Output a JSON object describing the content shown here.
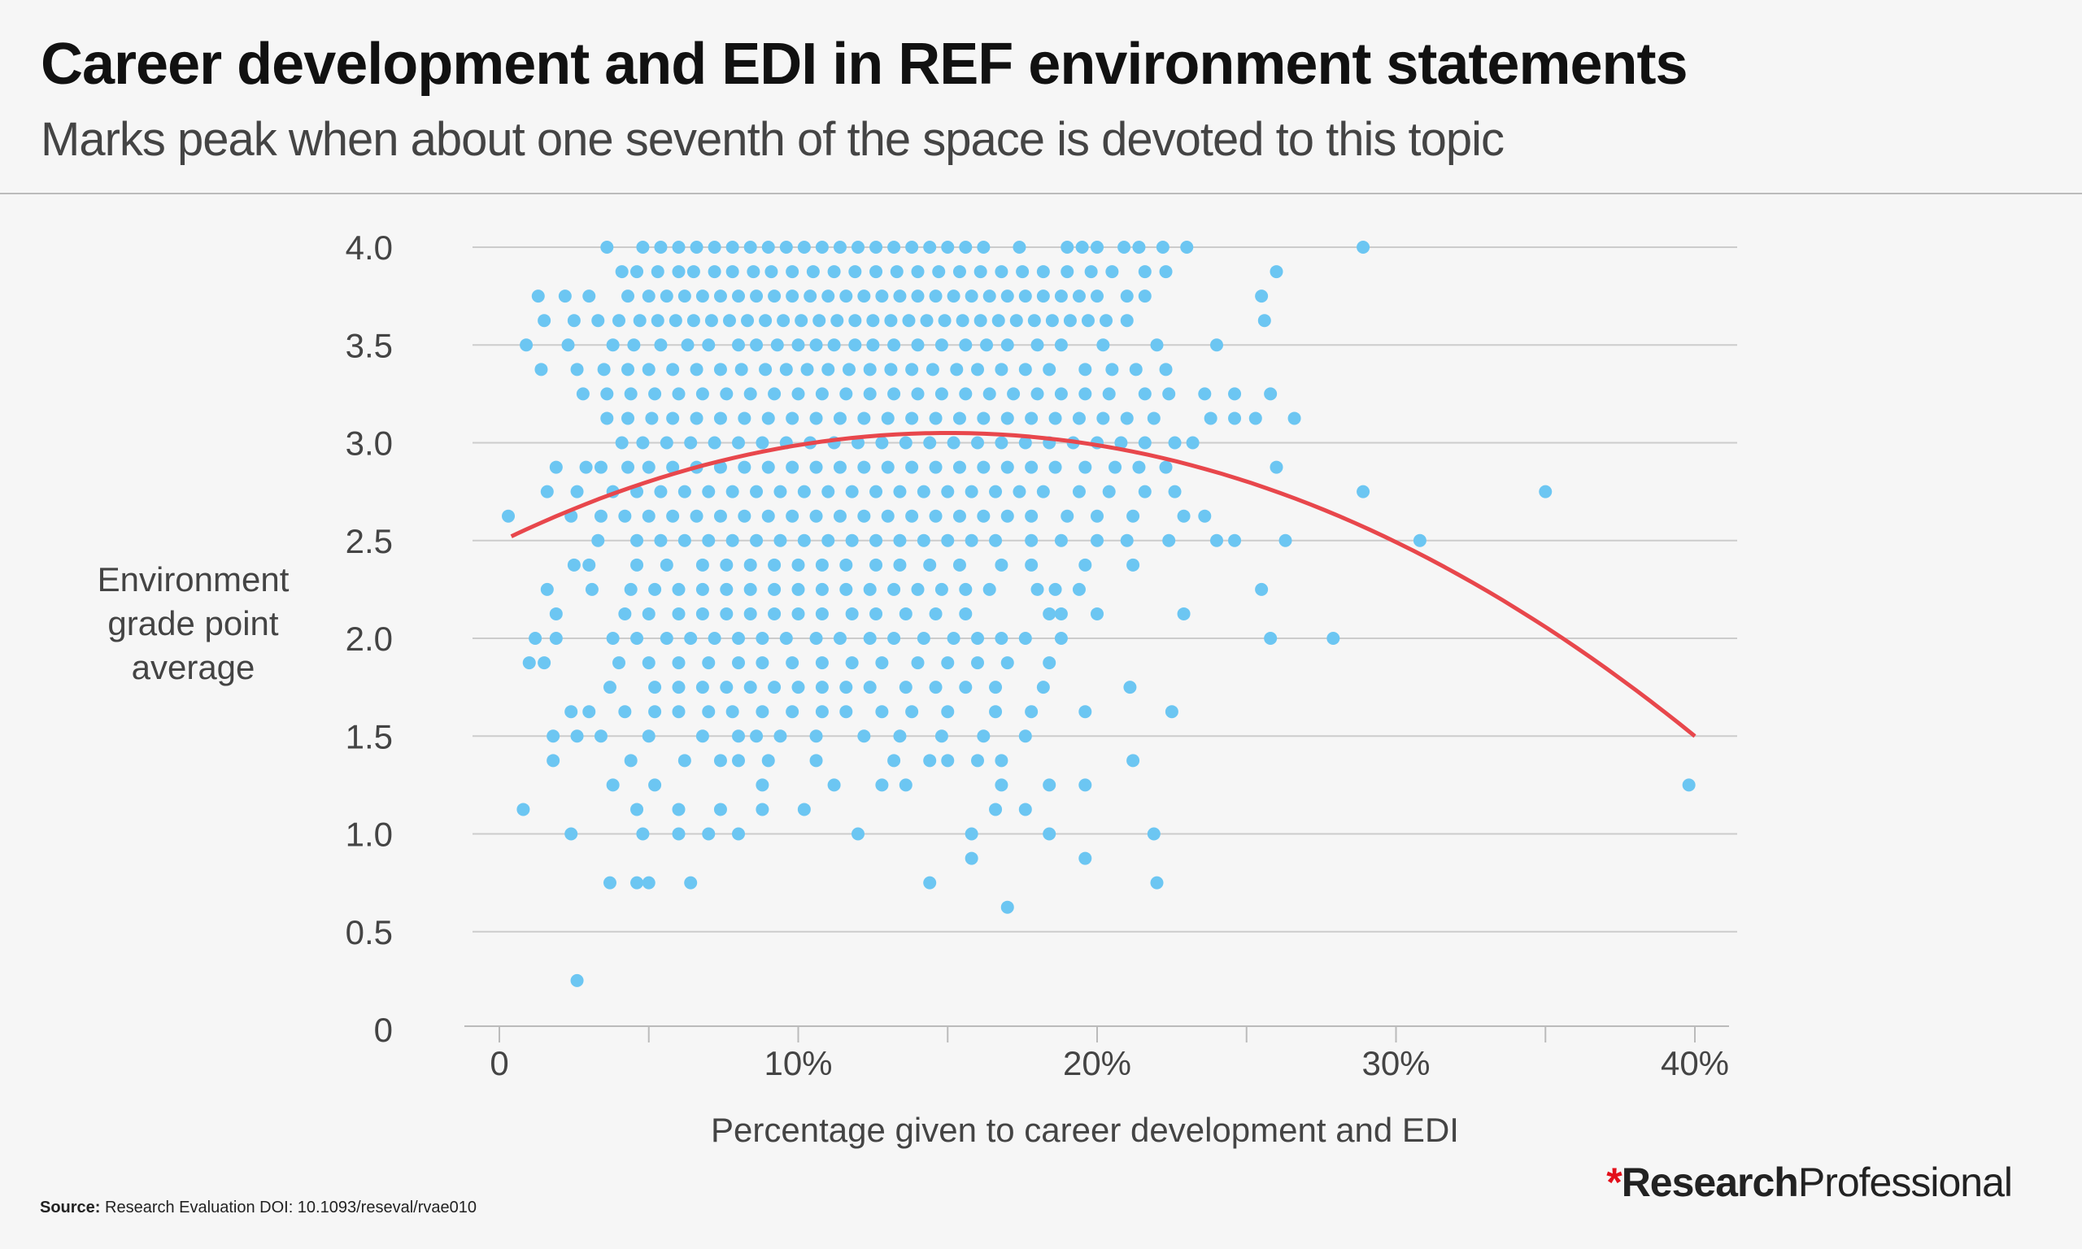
{
  "title": "Career development and EDI in REF environment statements",
  "subtitle": "Marks peak when about one seventh of the space is devoted to this topic",
  "source_label": "Source:",
  "source_text": "Research Evaluation DOI: 10.1093/reseval/rvae010",
  "logo": {
    "mark": "*",
    "bold": "Research",
    "regular": "Professional"
  },
  "colors": {
    "points": "#6cc6f2",
    "trend": "#e8474c",
    "grid": "#cccccc"
  },
  "chart_data": {
    "type": "scatter",
    "title": "Career development and EDI in REF environment statements",
    "subtitle": "Marks peak when about one seventh of the space is devoted to this topic",
    "xlabel": "Percentage given to career development and EDI",
    "ylabel_lines": [
      "Environment",
      "grade point",
      "average"
    ],
    "xlim": [
      0,
      40
    ],
    "ylim": [
      0,
      4
    ],
    "x_ticks": [
      {
        "v": 0,
        "label": "0"
      },
      {
        "v": 10,
        "label": "10%"
      },
      {
        "v": 20,
        "label": "20%"
      },
      {
        "v": 30,
        "label": "30%"
      },
      {
        "v": 40,
        "label": "40%"
      }
    ],
    "x_minor_ticks": [
      5,
      15,
      25,
      35
    ],
    "y_ticks": [
      {
        "v": 0,
        "label": "0"
      },
      {
        "v": 0.5,
        "label": "0.5"
      },
      {
        "v": 1,
        "label": "1.0"
      },
      {
        "v": 1.5,
        "label": "1.5"
      },
      {
        "v": 2,
        "label": "2.0"
      },
      {
        "v": 2.5,
        "label": "2.5"
      },
      {
        "v": 3,
        "label": "3.0"
      },
      {
        "v": 3.5,
        "label": "3.5"
      },
      {
        "v": 4,
        "label": "4.0"
      }
    ],
    "grid": "horizontal",
    "trend": {
      "type": "quadratic",
      "peak_x": 15,
      "peak_y": 3.05,
      "x_range": [
        0.4,
        40
      ],
      "y_at_end": 1.5
    },
    "rows": [
      {
        "y": 4.0,
        "x": [
          3.6,
          4.8,
          5.4,
          6.0,
          6.6,
          7.2,
          7.8,
          8.4,
          9.0,
          9.6,
          10.2,
          10.8,
          11.4,
          12.0,
          12.6,
          13.2,
          13.8,
          14.4,
          15.0,
          15.6,
          16.2,
          17.4,
          19.0,
          19.5,
          20.0,
          20.9,
          21.4,
          22.2,
          23.0,
          28.9
        ]
      },
      {
        "y": 3.875,
        "x": [
          4.1,
          4.6,
          5.3,
          6.0,
          6.5,
          7.2,
          7.8,
          8.5,
          9.1,
          9.8,
          10.5,
          11.2,
          11.9,
          12.6,
          13.3,
          14.0,
          14.7,
          15.4,
          16.1,
          16.8,
          17.5,
          18.2,
          19.0,
          19.8,
          20.5,
          21.6,
          22.3,
          26.0
        ]
      },
      {
        "y": 3.75,
        "x": [
          1.3,
          2.2,
          3.0,
          4.3,
          5.0,
          5.6,
          6.2,
          6.8,
          7.4,
          8.0,
          8.6,
          9.2,
          9.8,
          10.4,
          11.0,
          11.6,
          12.2,
          12.8,
          13.4,
          14.0,
          14.6,
          15.2,
          15.8,
          16.4,
          17.0,
          17.6,
          18.2,
          18.8,
          19.4,
          20.0,
          21.0,
          21.6,
          25.5
        ]
      },
      {
        "y": 3.625,
        "x": [
          1.5,
          2.5,
          3.3,
          4.0,
          4.7,
          5.3,
          5.9,
          6.5,
          7.1,
          7.7,
          8.3,
          8.9,
          9.5,
          10.1,
          10.7,
          11.3,
          11.9,
          12.5,
          13.1,
          13.7,
          14.3,
          14.9,
          15.5,
          16.1,
          16.7,
          17.3,
          17.9,
          18.5,
          19.1,
          19.7,
          20.3,
          21.0,
          25.6
        ]
      },
      {
        "y": 3.5,
        "x": [
          0.9,
          2.3,
          3.8,
          4.5,
          5.4,
          6.3,
          7.0,
          8.0,
          8.6,
          9.3,
          10.0,
          10.6,
          11.2,
          11.9,
          12.5,
          13.2,
          14.0,
          14.8,
          15.6,
          16.3,
          17.0,
          18.0,
          18.8,
          20.2,
          22.0,
          24.0
        ]
      },
      {
        "y": 3.375,
        "x": [
          1.4,
          2.6,
          3.5,
          4.3,
          5.0,
          5.8,
          6.6,
          7.4,
          8.1,
          8.9,
          9.6,
          10.3,
          11.0,
          11.7,
          12.4,
          13.1,
          13.8,
          14.5,
          15.3,
          16.0,
          16.8,
          17.6,
          18.4,
          19.6,
          20.5,
          21.3,
          22.3
        ]
      },
      {
        "y": 3.25,
        "x": [
          2.8,
          3.6,
          4.4,
          5.2,
          6.0,
          6.8,
          7.6,
          8.4,
          9.2,
          10.0,
          10.8,
          11.6,
          12.4,
          13.2,
          14.0,
          14.8,
          15.6,
          16.4,
          17.2,
          18.0,
          18.8,
          19.6,
          20.4,
          21.6,
          22.4,
          23.6,
          24.6,
          25.8
        ]
      },
      {
        "y": 3.125,
        "x": [
          3.6,
          4.3,
          5.1,
          5.8,
          6.6,
          7.4,
          8.2,
          9.0,
          9.8,
          10.6,
          11.4,
          12.2,
          13.0,
          13.8,
          14.6,
          15.4,
          16.2,
          17.0,
          17.8,
          18.6,
          19.4,
          20.2,
          21.0,
          21.9,
          23.8,
          24.6,
          25.3,
          26.6
        ]
      },
      {
        "y": 3.0,
        "x": [
          4.1,
          4.8,
          5.6,
          6.4,
          7.2,
          8.0,
          8.8,
          9.6,
          10.4,
          11.2,
          12.0,
          12.8,
          13.6,
          14.4,
          15.2,
          16.0,
          16.8,
          17.6,
          18.4,
          19.2,
          20.0,
          20.8,
          21.6,
          22.6,
          23.2
        ]
      },
      {
        "y": 2.875,
        "x": [
          1.9,
          2.9,
          3.4,
          4.3,
          5.0,
          5.8,
          6.6,
          7.4,
          8.2,
          9.0,
          9.8,
          10.6,
          11.4,
          12.2,
          13.0,
          13.8,
          14.6,
          15.4,
          16.2,
          17.0,
          17.8,
          18.6,
          19.6,
          20.6,
          21.4,
          22.3,
          26.0
        ]
      },
      {
        "y": 2.75,
        "x": [
          1.6,
          2.6,
          3.8,
          4.6,
          5.4,
          6.2,
          7.0,
          7.8,
          8.6,
          9.4,
          10.2,
          11.0,
          11.8,
          12.6,
          13.4,
          14.2,
          15.0,
          15.8,
          16.6,
          17.4,
          18.2,
          19.4,
          20.4,
          21.6,
          22.6,
          28.9,
          35.0
        ]
      },
      {
        "y": 2.625,
        "x": [
          0.3,
          2.4,
          3.4,
          4.2,
          5.0,
          5.8,
          6.6,
          7.4,
          8.2,
          9.0,
          9.8,
          10.6,
          11.4,
          12.2,
          13.0,
          13.8,
          14.6,
          15.4,
          16.2,
          17.0,
          17.8,
          19.0,
          20.0,
          21.2,
          22.9,
          23.6
        ]
      },
      {
        "y": 2.5,
        "x": [
          3.3,
          4.6,
          5.4,
          6.2,
          7.0,
          7.8,
          8.6,
          9.4,
          10.2,
          11.0,
          11.8,
          12.6,
          13.4,
          14.2,
          15.0,
          15.8,
          16.6,
          17.8,
          18.8,
          20.0,
          21.0,
          22.4,
          24.0,
          24.6,
          26.3,
          30.8
        ]
      },
      {
        "y": 2.375,
        "x": [
          2.5,
          3.0,
          4.6,
          5.6,
          6.8,
          7.6,
          8.4,
          9.2,
          10.0,
          10.8,
          11.6,
          12.6,
          13.4,
          14.4,
          15.4,
          16.8,
          17.8,
          19.6,
          21.2
        ]
      },
      {
        "y": 2.25,
        "x": [
          1.6,
          3.1,
          4.4,
          5.2,
          6.0,
          6.8,
          7.6,
          8.4,
          9.2,
          10.0,
          10.8,
          11.6,
          12.4,
          13.2,
          14.0,
          14.8,
          15.6,
          16.4,
          18.0,
          18.6,
          19.4,
          25.5
        ]
      },
      {
        "y": 2.125,
        "x": [
          1.9,
          4.2,
          5.0,
          6.0,
          6.8,
          7.6,
          8.4,
          9.2,
          10.0,
          10.8,
          11.8,
          12.6,
          13.6,
          14.6,
          15.6,
          18.4,
          18.8,
          20.0,
          22.9
        ]
      },
      {
        "y": 2.0,
        "x": [
          1.2,
          1.9,
          3.8,
          4.6,
          5.6,
          6.4,
          7.2,
          8.0,
          8.8,
          9.6,
          10.6,
          11.4,
          12.4,
          13.2,
          14.2,
          15.2,
          16.0,
          16.8,
          17.6,
          18.8,
          25.8,
          27.9
        ]
      },
      {
        "y": 1.875,
        "x": [
          1.0,
          1.5,
          4.0,
          5.0,
          6.0,
          7.0,
          8.0,
          8.8,
          9.8,
          10.8,
          11.8,
          12.8,
          14.0,
          15.0,
          16.0,
          17.0,
          18.4
        ]
      },
      {
        "y": 1.75,
        "x": [
          3.7,
          5.2,
          6.0,
          6.8,
          7.6,
          8.4,
          9.2,
          10.0,
          10.8,
          11.6,
          12.4,
          13.6,
          14.6,
          15.6,
          16.6,
          18.2,
          21.1
        ]
      },
      {
        "y": 1.625,
        "x": [
          2.4,
          3.0,
          4.2,
          5.2,
          6.0,
          7.0,
          7.8,
          8.8,
          9.8,
          10.8,
          11.6,
          12.8,
          13.8,
          15.0,
          16.6,
          17.8,
          19.6,
          22.5
        ]
      },
      {
        "y": 1.5,
        "x": [
          1.8,
          2.6,
          3.4,
          5.0,
          6.8,
          8.0,
          8.6,
          9.4,
          10.6,
          12.2,
          13.4,
          14.8,
          16.2,
          17.6
        ]
      },
      {
        "y": 1.375,
        "x": [
          1.8,
          4.4,
          6.2,
          7.4,
          8.0,
          9.0,
          10.6,
          13.2,
          14.4,
          15.0,
          16.0,
          16.8,
          21.2
        ]
      },
      {
        "y": 1.25,
        "x": [
          3.8,
          5.2,
          8.8,
          11.2,
          12.8,
          13.6,
          16.8,
          18.4,
          19.6,
          39.8
        ]
      },
      {
        "y": 1.125,
        "x": [
          0.8,
          4.6,
          6.0,
          7.4,
          8.8,
          10.2,
          16.6,
          17.6
        ]
      },
      {
        "y": 1.0,
        "x": [
          2.4,
          4.8,
          6.0,
          7.0,
          8.0,
          12.0,
          15.8,
          18.4,
          21.9
        ]
      },
      {
        "y": 0.875,
        "x": [
          15.8,
          19.6
        ]
      },
      {
        "y": 0.75,
        "x": [
          3.7,
          4.6,
          5.0,
          6.4,
          14.4,
          22.0
        ]
      },
      {
        "y": 0.625,
        "x": [
          17.0
        ]
      },
      {
        "y": 0.25,
        "x": [
          2.6
        ]
      }
    ]
  }
}
